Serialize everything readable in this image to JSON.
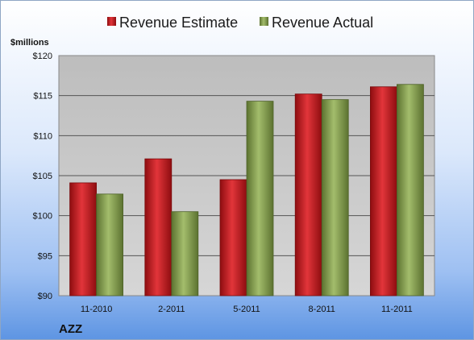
{
  "chart_data": {
    "type": "bar",
    "categories": [
      "11-2010",
      "2-2011",
      "5-2011",
      "8-2011",
      "11-2011"
    ],
    "series": [
      {
        "name": "Revenue Estimate",
        "values": [
          104.1,
          107.1,
          104.5,
          115.2,
          116.1
        ]
      },
      {
        "name": "Revenue Actual",
        "values": [
          102.7,
          100.5,
          114.3,
          114.5,
          116.4
        ]
      }
    ],
    "ylabel": "$millions",
    "ylim": [
      90,
      120
    ],
    "yticks": [
      90,
      95,
      100,
      105,
      110,
      115,
      120
    ],
    "ytick_labels": [
      "$90",
      "$95",
      "$100",
      "$105",
      "$110",
      "$115",
      "$120"
    ],
    "grid": true,
    "legend_position": "top-center",
    "footer_label": "AZZ"
  },
  "colors": {
    "estimate": "#c0151b",
    "actual": "#7f9a48",
    "plot_background": "#c8c8c8",
    "gridline": "#555555"
  }
}
